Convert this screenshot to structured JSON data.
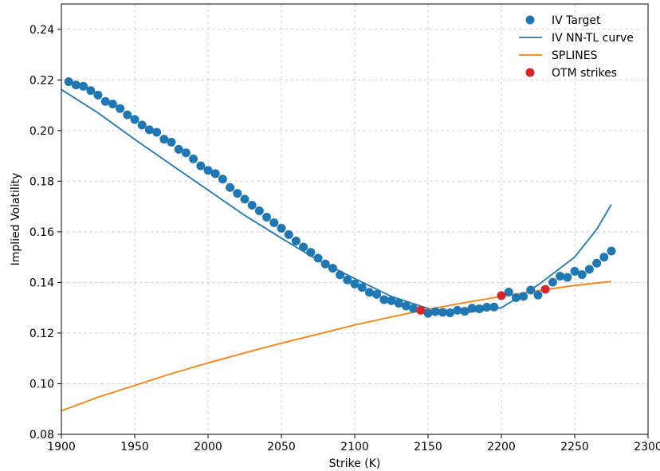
{
  "chart_data": {
    "type": "scatter",
    "xlabel": "Strike (K)",
    "ylabel": "Implied Volatility",
    "xlim": [
      1900,
      2300
    ],
    "ylim": [
      0.08,
      0.25
    ],
    "xticks": [
      "1900",
      "1950",
      "2000",
      "2050",
      "2100",
      "2150",
      "2200",
      "2250",
      "2300"
    ],
    "yticks": [
      "0.08",
      "0.10",
      "0.12",
      "0.14",
      "0.16",
      "0.18",
      "0.20",
      "0.22",
      "0.24"
    ],
    "grid": true,
    "legend_position": "top-right",
    "series": [
      {
        "name": "IV Target",
        "kind": "scatter",
        "color": "#1f77b4",
        "x": [
          1905,
          1910,
          1915,
          1920,
          1925,
          1930,
          1935,
          1940,
          1945,
          1950,
          1955,
          1960,
          1965,
          1970,
          1975,
          1980,
          1985,
          1990,
          1995,
          2000,
          2005,
          2010,
          2015,
          2020,
          2025,
          2030,
          2035,
          2040,
          2045,
          2050,
          2055,
          2060,
          2065,
          2070,
          2075,
          2080,
          2085,
          2090,
          2095,
          2100,
          2105,
          2110,
          2115,
          2120,
          2125,
          2130,
          2135,
          2140,
          2150,
          2155,
          2160,
          2165,
          2170,
          2175,
          2180,
          2185,
          2190,
          2195,
          2205,
          2210,
          2215,
          2220,
          2225,
          2235,
          2240,
          2245,
          2250,
          2255,
          2260,
          2265,
          2270,
          2275
        ],
        "y": [
          0.2193,
          0.218,
          0.2175,
          0.2158,
          0.214,
          0.2115,
          0.2105,
          0.2087,
          0.2062,
          0.2044,
          0.2022,
          0.2003,
          0.1993,
          0.1966,
          0.1954,
          0.1926,
          0.1912,
          0.1888,
          0.1861,
          0.1843,
          0.183,
          0.1808,
          0.1775,
          0.1752,
          0.1729,
          0.1705,
          0.1683,
          0.1658,
          0.1636,
          0.1614,
          0.1589,
          0.1564,
          0.154,
          0.1519,
          0.1496,
          0.1473,
          0.1456,
          0.143,
          0.141,
          0.1394,
          0.138,
          0.1361,
          0.1353,
          0.1332,
          0.1328,
          0.1318,
          0.1307,
          0.1297,
          0.1278,
          0.1285,
          0.1282,
          0.128,
          0.129,
          0.1286,
          0.1298,
          0.1296,
          0.1302,
          0.1303,
          0.1362,
          0.134,
          0.1345,
          0.137,
          0.135,
          0.1401,
          0.1425,
          0.142,
          0.1444,
          0.1431,
          0.1452,
          0.1476,
          0.15,
          0.1524
        ]
      },
      {
        "name": "IV NN-TL curve",
        "kind": "line",
        "color": "#1f77b4",
        "x": [
          1900,
          1925,
          1950,
          1975,
          2000,
          2025,
          2050,
          2075,
          2100,
          2125,
          2150,
          2175,
          2200,
          2225,
          2250,
          2265,
          2275
        ],
        "y": [
          0.2162,
          0.207,
          0.1965,
          0.1865,
          0.1765,
          0.1665,
          0.1575,
          0.1488,
          0.1415,
          0.1345,
          0.1297,
          0.128,
          0.13,
          0.139,
          0.15,
          0.161,
          0.1708
        ]
      },
      {
        "name": "SPLINES",
        "kind": "line",
        "color": "#ff7f0e",
        "x": [
          1900,
          1925,
          1950,
          1975,
          2000,
          2025,
          2050,
          2075,
          2100,
          2125,
          2150,
          2175,
          2200,
          2225,
          2250,
          2275
        ],
        "y": [
          0.0893,
          0.0947,
          0.0993,
          0.104,
          0.1082,
          0.1122,
          0.116,
          0.1196,
          0.1232,
          0.1264,
          0.1294,
          0.132,
          0.1345,
          0.1368,
          0.1388,
          0.1404
        ]
      },
      {
        "name": "OTM strikes",
        "kind": "scatter",
        "color": "#d62728",
        "x": [
          2145,
          2200,
          2230
        ],
        "y": [
          0.129,
          0.1348,
          0.1373
        ]
      }
    ]
  }
}
